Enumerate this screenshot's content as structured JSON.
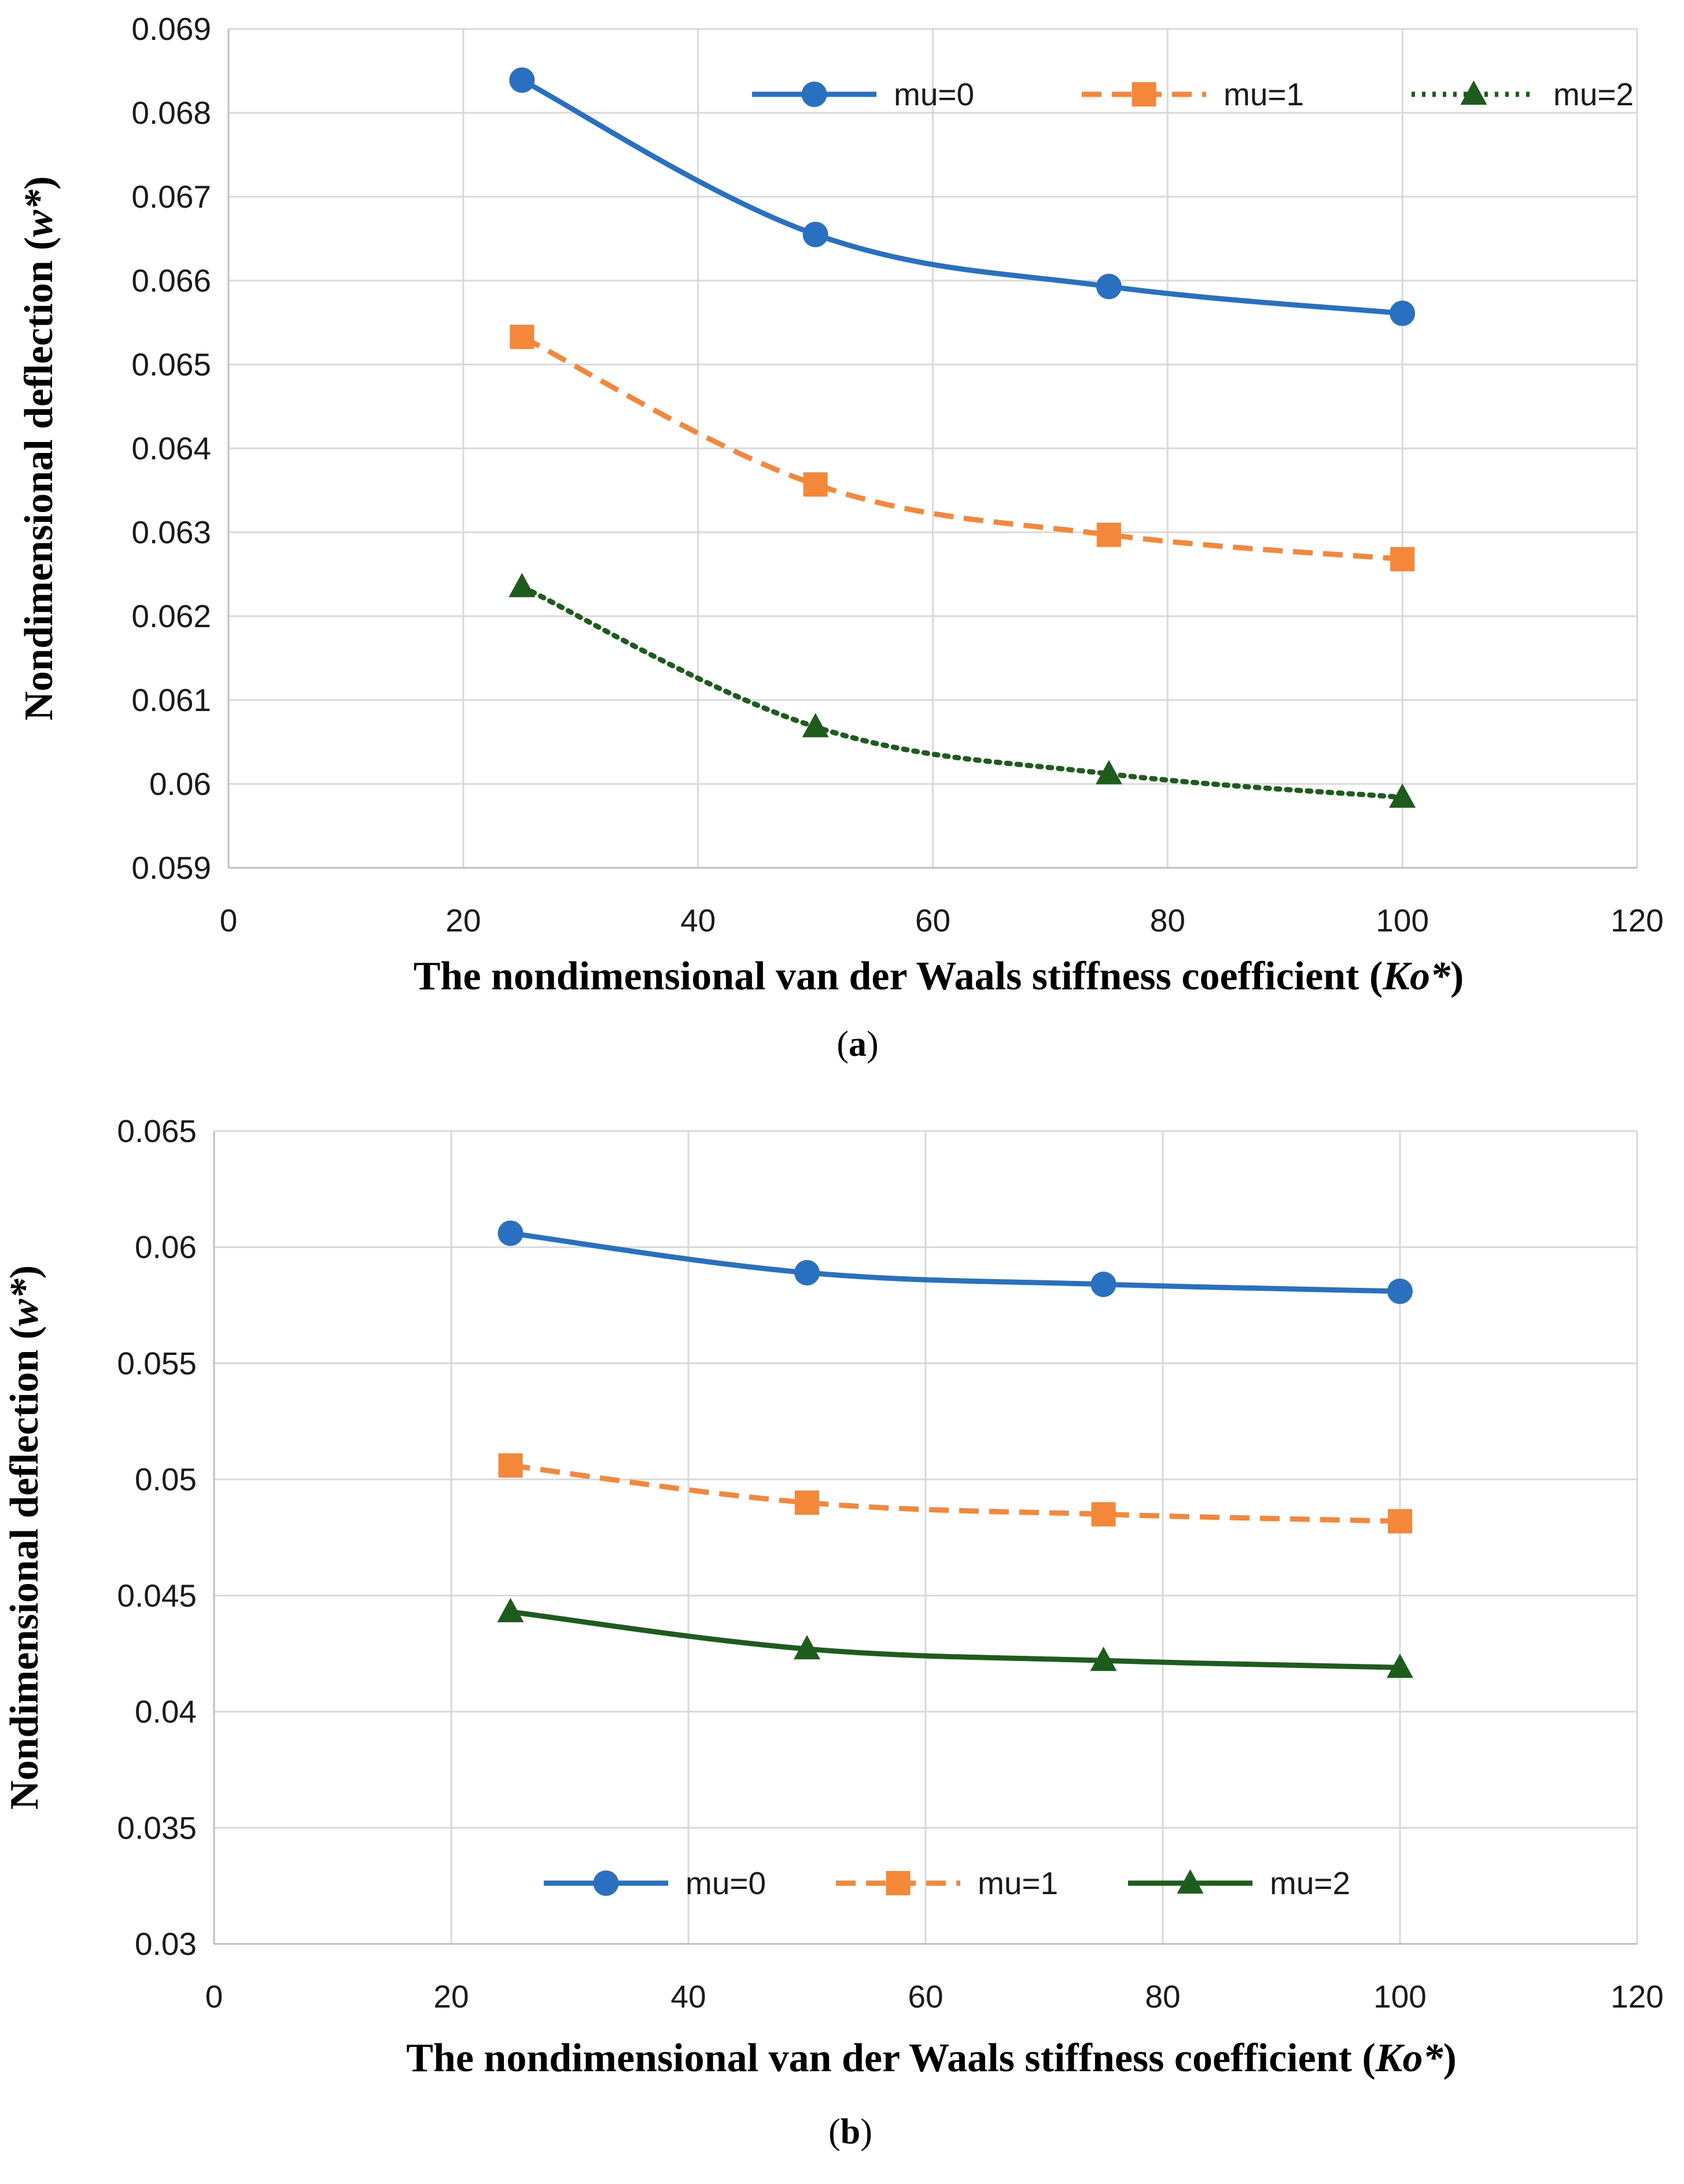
{
  "colors": {
    "mu0": "#2970C0",
    "mu1": "#F5873A",
    "mu2": "#1E5C1E",
    "grid": "#d9d9d9"
  },
  "chart_data": [
    {
      "type": "line",
      "panel": "(a)",
      "x": [
        25,
        50,
        75,
        100
      ],
      "xlabel": "The nondimensional van der Waals stiffness coefficient (Ko*)",
      "ylabel": "Nondimensional deflection (w*)",
      "xlim": [
        0,
        120
      ],
      "ylim": [
        0.059,
        0.069
      ],
      "xticks": [
        0,
        20,
        40,
        60,
        80,
        100,
        120
      ],
      "yticks": [
        0.059,
        0.06,
        0.061,
        0.062,
        0.063,
        0.064,
        0.065,
        0.066,
        0.067,
        0.068,
        0.069
      ],
      "ytick_labels": [
        "0.059",
        "0.06",
        "0.061",
        "0.062",
        "0.063",
        "0.064",
        "0.065",
        "0.066",
        "0.067",
        "0.068",
        "0.069"
      ],
      "xtick_labels": [
        "0",
        "20",
        "40",
        "60",
        "80",
        "100",
        "120"
      ],
      "grid": "vertical",
      "legend": "top-right",
      "series": [
        {
          "name": "mu=0",
          "marker": "circle",
          "dash": "solid",
          "color": "#2970C0",
          "values": [
            0.06839,
            0.06655,
            0.06593,
            0.06561
          ]
        },
        {
          "name": "mu=1",
          "marker": "square",
          "dash": "dashed",
          "color": "#F5873A",
          "values": [
            0.06533,
            0.06357,
            0.06297,
            0.06268
          ]
        },
        {
          "name": "mu=2",
          "marker": "triangle",
          "dash": "dotted",
          "color": "#1E5C1E",
          "values": [
            0.06235,
            0.06068,
            0.06012,
            0.05984
          ]
        }
      ]
    },
    {
      "type": "line",
      "panel": "(b)",
      "x": [
        25,
        50,
        75,
        100
      ],
      "xlabel": "The nondimensional van der Waals stiffness coefficient (Ko*)",
      "ylabel": "Nondimensional deflection (w*)",
      "xlim": [
        0,
        120
      ],
      "ylim": [
        0.03,
        0.065
      ],
      "xticks": [
        0,
        20,
        40,
        60,
        80,
        100,
        120
      ],
      "yticks": [
        0.03,
        0.035,
        0.04,
        0.045,
        0.05,
        0.055,
        0.06,
        0.065
      ],
      "ytick_labels": [
        "0.03",
        "0.035",
        "0.04",
        "0.045",
        "0.05",
        "0.055",
        "0.06",
        "0.065"
      ],
      "xtick_labels": [
        "0",
        "20",
        "40",
        "60",
        "80",
        "100",
        "120"
      ],
      "grid": "vertical",
      "legend": "bottom-center",
      "series": [
        {
          "name": "mu=0",
          "marker": "circle",
          "dash": "solid",
          "color": "#2970C0",
          "values": [
            0.0606,
            0.0589,
            0.0584,
            0.0581
          ]
        },
        {
          "name": "mu=1",
          "marker": "square",
          "dash": "dashed",
          "color": "#F5873A",
          "values": [
            0.0506,
            0.049,
            0.0485,
            0.0482
          ]
        },
        {
          "name": "mu=2",
          "marker": "triangle",
          "dash": "solid",
          "color": "#1E5C1E",
          "values": [
            0.0443,
            0.0427,
            0.0422,
            0.0419
          ]
        }
      ]
    }
  ]
}
